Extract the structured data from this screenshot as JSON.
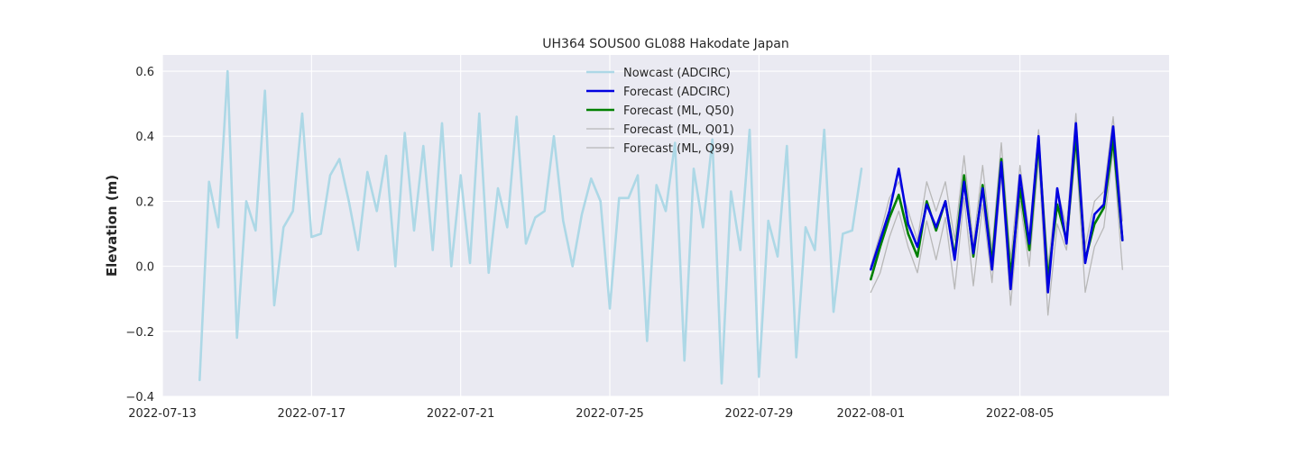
{
  "chart_data": {
    "type": "line",
    "title": "UH364 SOUS00 GL088 Hakodate Japan",
    "xlabel": "",
    "ylabel": "Elevation (m)",
    "grid": true,
    "legend_position": "top-center",
    "xlim": [
      "2022-07-13",
      "2022-08-09"
    ],
    "ylim": [
      -0.4,
      0.65
    ],
    "x_ticks": [
      "2022-07-13",
      "2022-07-17",
      "2022-07-21",
      "2022-07-25",
      "2022-07-29",
      "2022-08-01",
      "2022-08-05"
    ],
    "y_ticks": [
      -0.4,
      -0.2,
      0.0,
      0.2,
      0.4,
      0.6
    ],
    "y_tick_labels": [
      "−0.4",
      "−0.2",
      "0.0",
      "0.2",
      "0.4",
      "0.6"
    ],
    "series": [
      {
        "name": "Nowcast (ADCIRC)",
        "color": "#add8e6",
        "width": 2.6,
        "x": [
          "2022-07-14 00:00",
          "2022-07-14 06:00",
          "2022-07-14 12:00",
          "2022-07-14 18:00",
          "2022-07-15 00:00",
          "2022-07-15 06:00",
          "2022-07-15 12:00",
          "2022-07-15 18:00",
          "2022-07-16 00:00",
          "2022-07-16 06:00",
          "2022-07-16 12:00",
          "2022-07-16 18:00",
          "2022-07-17 00:00",
          "2022-07-17 06:00",
          "2022-07-17 12:00",
          "2022-07-17 18:00",
          "2022-07-18 00:00",
          "2022-07-18 06:00",
          "2022-07-18 12:00",
          "2022-07-18 18:00",
          "2022-07-19 00:00",
          "2022-07-19 06:00",
          "2022-07-19 12:00",
          "2022-07-19 18:00",
          "2022-07-20 00:00",
          "2022-07-20 06:00",
          "2022-07-20 12:00",
          "2022-07-20 18:00",
          "2022-07-21 00:00",
          "2022-07-21 06:00",
          "2022-07-21 12:00",
          "2022-07-21 18:00",
          "2022-07-22 00:00",
          "2022-07-22 06:00",
          "2022-07-22 12:00",
          "2022-07-22 18:00",
          "2022-07-23 00:00",
          "2022-07-23 06:00",
          "2022-07-23 12:00",
          "2022-07-23 18:00",
          "2022-07-24 00:00",
          "2022-07-24 06:00",
          "2022-07-24 12:00",
          "2022-07-24 18:00",
          "2022-07-25 00:00",
          "2022-07-25 06:00",
          "2022-07-25 12:00",
          "2022-07-25 18:00",
          "2022-07-26 00:00",
          "2022-07-26 06:00",
          "2022-07-26 12:00",
          "2022-07-26 18:00",
          "2022-07-27 00:00",
          "2022-07-27 06:00",
          "2022-07-27 12:00",
          "2022-07-27 18:00",
          "2022-07-28 00:00",
          "2022-07-28 06:00",
          "2022-07-28 12:00",
          "2022-07-28 18:00",
          "2022-07-29 00:00",
          "2022-07-29 06:00",
          "2022-07-29 12:00",
          "2022-07-29 18:00",
          "2022-07-30 00:00",
          "2022-07-30 06:00",
          "2022-07-30 12:00",
          "2022-07-30 18:00",
          "2022-07-31 00:00",
          "2022-07-31 06:00",
          "2022-07-31 12:00",
          "2022-07-31 18:00"
        ],
        "values": [
          -0.35,
          0.26,
          0.12,
          0.6,
          -0.22,
          0.2,
          0.11,
          0.54,
          -0.12,
          0.12,
          0.17,
          0.47,
          0.09,
          0.1,
          0.28,
          0.33,
          0.2,
          0.05,
          0.29,
          0.17,
          0.34,
          0.0,
          0.41,
          0.11,
          0.37,
          0.05,
          0.44,
          0.0,
          0.28,
          0.01,
          0.47,
          -0.02,
          0.24,
          0.12,
          0.46,
          0.07,
          0.15,
          0.17,
          0.4,
          0.14,
          0.0,
          0.16,
          0.27,
          0.2,
          -0.13,
          0.21,
          0.21,
          0.28,
          -0.23,
          0.25,
          0.17,
          0.38,
          -0.29,
          0.3,
          0.12,
          0.39,
          -0.36,
          0.23,
          0.05,
          0.42,
          -0.34,
          0.14,
          0.03,
          0.37,
          -0.28,
          0.12,
          0.05,
          0.42,
          -0.14,
          0.1,
          0.11,
          0.3
        ]
      },
      {
        "name": "Forecast (ADCIRC)",
        "color": "#0000e0",
        "width": 2.6,
        "x": [
          "2022-08-01 00:00",
          "2022-08-01 06:00",
          "2022-08-01 12:00",
          "2022-08-01 18:00",
          "2022-08-02 00:00",
          "2022-08-02 06:00",
          "2022-08-02 12:00",
          "2022-08-02 18:00",
          "2022-08-03 00:00",
          "2022-08-03 06:00",
          "2022-08-03 12:00",
          "2022-08-03 18:00",
          "2022-08-04 00:00",
          "2022-08-04 06:00",
          "2022-08-04 12:00",
          "2022-08-04 18:00",
          "2022-08-05 00:00",
          "2022-08-05 06:00",
          "2022-08-05 12:00",
          "2022-08-05 18:00",
          "2022-08-06 00:00",
          "2022-08-06 06:00",
          "2022-08-06 12:00",
          "2022-08-06 18:00",
          "2022-08-07 00:00",
          "2022-08-07 06:00",
          "2022-08-07 12:00",
          "2022-08-07 18:00"
        ],
        "values": [
          -0.01,
          0.08,
          0.17,
          0.3,
          0.13,
          0.06,
          0.19,
          0.12,
          0.2,
          0.02,
          0.26,
          0.04,
          0.24,
          -0.01,
          0.32,
          -0.07,
          0.28,
          0.07,
          0.4,
          -0.08,
          0.24,
          0.07,
          0.44,
          0.01,
          0.16,
          0.19,
          0.43,
          0.08
        ]
      },
      {
        "name": "Forecast (ML, Q50)",
        "color": "#008000",
        "width": 2.6,
        "x": [
          "2022-08-01 00:00",
          "2022-08-01 06:00",
          "2022-08-01 12:00",
          "2022-08-01 18:00",
          "2022-08-02 00:00",
          "2022-08-02 06:00",
          "2022-08-02 12:00",
          "2022-08-02 18:00",
          "2022-08-03 00:00",
          "2022-08-03 06:00",
          "2022-08-03 12:00",
          "2022-08-03 18:00",
          "2022-08-04 00:00",
          "2022-08-04 06:00",
          "2022-08-04 12:00",
          "2022-08-04 18:00",
          "2022-08-05 00:00",
          "2022-08-05 06:00",
          "2022-08-05 12:00",
          "2022-08-05 18:00",
          "2022-08-06 00:00",
          "2022-08-06 06:00",
          "2022-08-06 12:00",
          "2022-08-06 18:00",
          "2022-08-07 00:00",
          "2022-08-07 06:00",
          "2022-08-07 12:00",
          "2022-08-07 18:00"
        ],
        "values": [
          -0.04,
          0.06,
          0.15,
          0.22,
          0.1,
          0.03,
          0.2,
          0.11,
          0.2,
          0.03,
          0.28,
          0.03,
          0.25,
          0.01,
          0.33,
          -0.03,
          0.24,
          0.05,
          0.38,
          -0.04,
          0.19,
          0.08,
          0.4,
          0.02,
          0.13,
          0.18,
          0.39,
          0.08
        ]
      },
      {
        "name": "Forecast (ML, Q01)",
        "color": "#b8b8b8",
        "width": 1.3,
        "x": [
          "2022-08-01 00:00",
          "2022-08-01 06:00",
          "2022-08-01 12:00",
          "2022-08-01 18:00",
          "2022-08-02 00:00",
          "2022-08-02 06:00",
          "2022-08-02 12:00",
          "2022-08-02 18:00",
          "2022-08-03 00:00",
          "2022-08-03 06:00",
          "2022-08-03 12:00",
          "2022-08-03 18:00",
          "2022-08-04 00:00",
          "2022-08-04 06:00",
          "2022-08-04 12:00",
          "2022-08-04 18:00",
          "2022-08-05 00:00",
          "2022-08-05 06:00",
          "2022-08-05 12:00",
          "2022-08-05 18:00",
          "2022-08-06 00:00",
          "2022-08-06 06:00",
          "2022-08-06 12:00",
          "2022-08-06 18:00",
          "2022-08-07 00:00",
          "2022-08-07 06:00",
          "2022-08-07 12:00",
          "2022-08-07 18:00"
        ],
        "values": [
          -0.08,
          -0.02,
          0.09,
          0.17,
          0.06,
          -0.02,
          0.14,
          0.02,
          0.15,
          -0.07,
          0.21,
          -0.06,
          0.19,
          -0.05,
          0.28,
          -0.12,
          0.2,
          0.0,
          0.33,
          -0.15,
          0.13,
          0.05,
          0.36,
          -0.08,
          0.06,
          0.12,
          0.36,
          -0.01
        ]
      },
      {
        "name": "Forecast (ML, Q99)",
        "color": "#b8b8b8",
        "width": 1.3,
        "x": [
          "2022-08-01 00:00",
          "2022-08-01 06:00",
          "2022-08-01 12:00",
          "2022-08-01 18:00",
          "2022-08-02 00:00",
          "2022-08-02 06:00",
          "2022-08-02 12:00",
          "2022-08-02 18:00",
          "2022-08-03 00:00",
          "2022-08-03 06:00",
          "2022-08-03 12:00",
          "2022-08-03 18:00",
          "2022-08-04 00:00",
          "2022-08-04 06:00",
          "2022-08-04 12:00",
          "2022-08-04 18:00",
          "2022-08-05 00:00",
          "2022-08-05 06:00",
          "2022-08-05 12:00",
          "2022-08-05 18:00",
          "2022-08-06 00:00",
          "2022-08-06 06:00",
          "2022-08-06 12:00",
          "2022-08-06 18:00",
          "2022-08-07 00:00",
          "2022-08-07 06:00",
          "2022-08-07 12:00",
          "2022-08-07 18:00"
        ],
        "values": [
          0.0,
          0.1,
          0.21,
          0.26,
          0.17,
          0.08,
          0.26,
          0.17,
          0.26,
          0.08,
          0.34,
          0.07,
          0.31,
          0.05,
          0.38,
          0.02,
          0.31,
          0.1,
          0.42,
          0.0,
          0.24,
          0.12,
          0.47,
          0.06,
          0.2,
          0.23,
          0.46,
          0.14
        ]
      }
    ]
  }
}
